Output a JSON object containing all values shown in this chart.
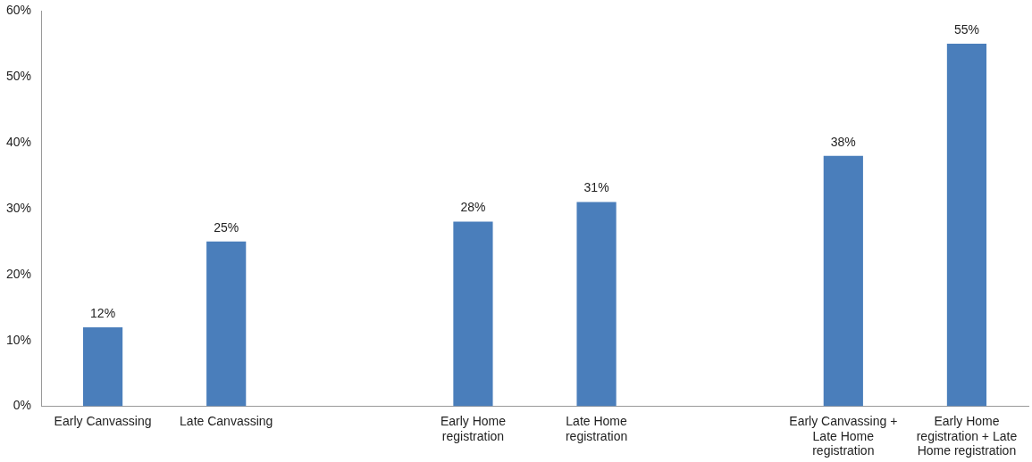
{
  "chart_data": {
    "type": "bar",
    "categories": [
      "Early Canvassing",
      "Late Canvassing",
      null,
      "Early Home registration",
      "Late Home registration",
      null,
      "Early Canvassing + Late Home registration",
      "Early Home registration + Late Home registration"
    ],
    "values": [
      12,
      25,
      null,
      28,
      31,
      null,
      38,
      55
    ],
    "color": "#4a7ebb",
    "value_labels": [
      "12%",
      "25%",
      null,
      "28%",
      "31%",
      null,
      "38%",
      "55%"
    ],
    "ylim": [
      0,
      60
    ],
    "yticks": [
      {
        "value": 0,
        "label": "0%"
      },
      {
        "value": 10,
        "label": "10%"
      },
      {
        "value": 20,
        "label": "20%"
      },
      {
        "value": 30,
        "label": "30%"
      },
      {
        "value": 40,
        "label": "40%"
      },
      {
        "value": 50,
        "label": "50%"
      },
      {
        "value": 60,
        "label": "60%"
      }
    ],
    "grid": false,
    "legend": false
  }
}
